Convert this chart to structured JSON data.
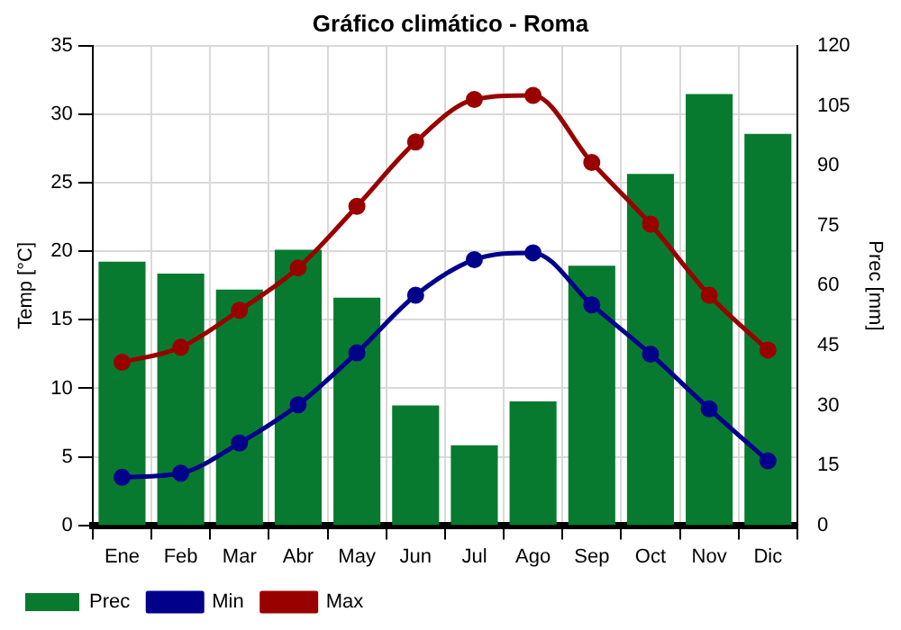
{
  "chart_data": {
    "type": "bar",
    "title": "Gráfico climático - Roma",
    "ylabel": "Temp [°C]",
    "y2label": "Prec [mm]",
    "categories": [
      "Ene",
      "Feb",
      "Mar",
      "Abr",
      "May",
      "Jun",
      "Jul",
      "Ago",
      "Sep",
      "Oct",
      "Nov",
      "Dic"
    ],
    "series": [
      {
        "name": "Prec",
        "axis": "y2",
        "color": "#077a30",
        "values": [
          66,
          63,
          59,
          69,
          57,
          30,
          20,
          31,
          65,
          88,
          108,
          98
        ]
      },
      {
        "name": "Min",
        "type": "line",
        "color": "#00008b",
        "values": [
          3.5,
          3.8,
          6.0,
          8.8,
          12.6,
          16.8,
          19.4,
          19.9,
          16.1,
          12.5,
          8.5,
          4.7
        ]
      },
      {
        "name": "Max",
        "type": "line",
        "color": "#990000",
        "values": [
          11.9,
          13.0,
          15.7,
          18.8,
          23.3,
          28.0,
          31.1,
          31.4,
          26.5,
          22.0,
          16.8,
          12.8
        ]
      }
    ],
    "ylim": [
      0,
      35
    ],
    "yticks": [
      0,
      5,
      10,
      15,
      20,
      25,
      30,
      35
    ],
    "y2lim": [
      0,
      120
    ],
    "y2ticks": [
      0,
      15,
      30,
      45,
      60,
      75,
      90,
      105,
      120
    ],
    "grid": true,
    "legend": "bottom left",
    "marker": "circle"
  }
}
